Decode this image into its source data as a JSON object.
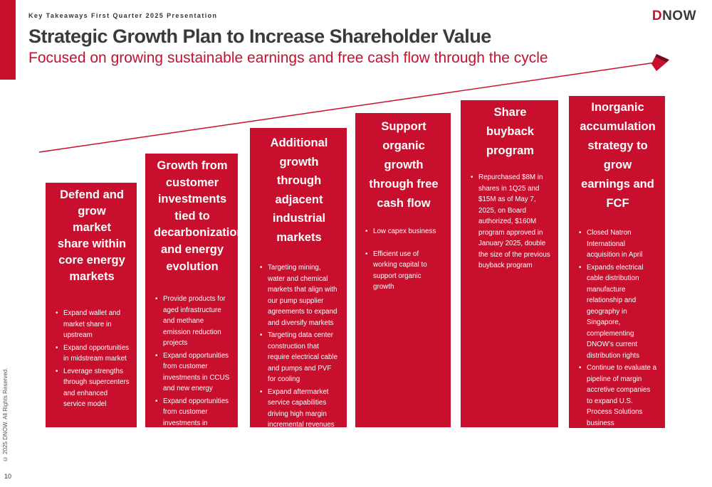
{
  "header": {
    "kicker": "Key Takeaways First Quarter 2025 Presentation",
    "title": "Strategic Growth Plan to Increase Shareholder Value",
    "subtitle": "Focused on growing sustainable earnings and free cash flow through the cycle",
    "logo_text": "DNOW",
    "logo_first_letter": "D",
    "logo_rest": "NOW"
  },
  "colors": {
    "accent": "#c8102e",
    "text_dark": "#3a3a3a"
  },
  "columns": [
    {
      "title": "Defend and grow market share within core energy markets",
      "bullets": [
        "Expand wallet and market share in upstream",
        "Expand opportunities in midstream market",
        "Leverage strengths through supercenters and enhanced service model"
      ]
    },
    {
      "title": "Growth from customer investments tied to decarbonization and energy evolution",
      "bullets": [
        "Provide products for aged infrastructure and methane emission reduction projects",
        "Expand opportunities from customer investments in CCUS and new energy",
        "Expand opportunities from customer investments in renewable fuels"
      ]
    },
    {
      "title": "Additional growth through adjacent industrial markets",
      "bullets": [
        "Targeting mining, water and chemical markets that align with our pump supplier agreements to expand and diversify markets",
        "Targeting data center construction that require electrical cable and pumps and PVF for cooling",
        "Expand aftermarket service capabilities driving high margin incremental revenues"
      ]
    },
    {
      "title": "Support organic growth through free cash flow",
      "bullets": [
        "Low capex business",
        "Efficient use of working capital to support organic growth"
      ]
    },
    {
      "title": "Share buyback program",
      "bullets": [
        "Repurchased $8M in shares in 1Q25 and $15M as of May 7, 2025, on Board authorized, $160M program approved in January 2025, double the size of the previous buyback program"
      ]
    },
    {
      "title": "Inorganic accumulation strategy to grow earnings and FCF",
      "bullets": [
        "Closed Natron International acquisition in April",
        "Expands electrical cable distribution manufacture relationship and geography in Singapore, complementing DNOW’s current distribution rights",
        "Continue to evaluate a pipeline of margin accretive companies to expand U.S. Process Solutions business"
      ]
    }
  ],
  "footer": {
    "copyright": "© 2025 DNOW. All Rights Reserved.",
    "page_number": "10"
  }
}
